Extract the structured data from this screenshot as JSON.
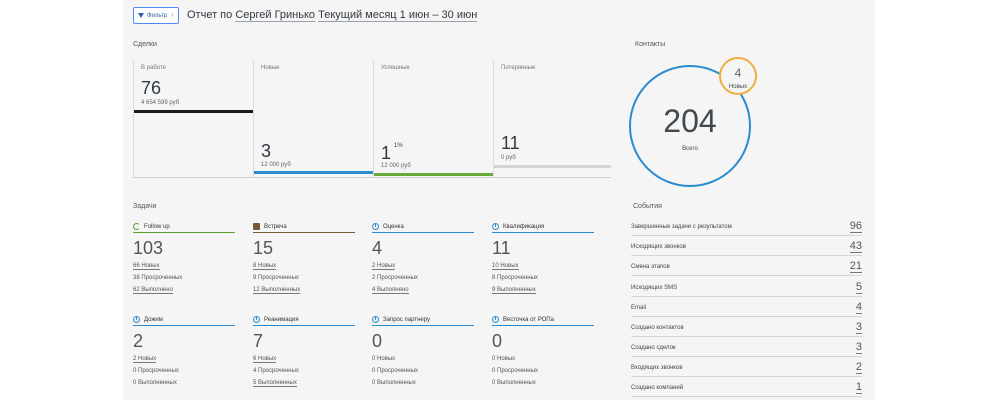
{
  "header": {
    "filter_label": "Фильтр",
    "title_prefix": "Отчет по",
    "user": "Сергей Гринько",
    "period": "Текущий месяц 1 июн – 30 июн"
  },
  "deals": {
    "title": "Сделки",
    "columns": [
      {
        "label": "В работе",
        "value": "76",
        "sup": "",
        "sum": "4 654 599 руб",
        "bar_color": "#1b1b1b"
      },
      {
        "label": "Новые",
        "value": "3",
        "sup": "",
        "sum": "12 000 руб",
        "bar_color": "#2a8bd0"
      },
      {
        "label": "Успешные",
        "value": "1",
        "sup": "1%",
        "sum": "12 000 руб",
        "bar_color": "#6aaa3a"
      },
      {
        "label": "Потерянные",
        "value": "11",
        "sup": "",
        "sum": "0 руб",
        "bar_color": "#d4d4d4"
      }
    ]
  },
  "contacts": {
    "title": "Контакты",
    "total": "204",
    "total_label": "Всего",
    "new": "4",
    "new_label": "Новых"
  },
  "tasks": {
    "title": "Задачи",
    "items": [
      {
        "name": "Follow up",
        "icon": "followup-icon",
        "count": "103",
        "new": "66 Новых",
        "overdue": "38 Просроченных",
        "done": "62 Выполнено"
      },
      {
        "name": "Встреча",
        "icon": "briefcase-icon",
        "count": "15",
        "new": "8 Новых",
        "overdue": "9 Просроченных",
        "done": "12 Выполненных"
      },
      {
        "name": "Оценка",
        "icon": "clock-icon",
        "count": "4",
        "new": "2 Новых",
        "overdue": "2 Просроченных",
        "done": "4 Выполнено"
      },
      {
        "name": "Квалификация",
        "icon": "clock-icon",
        "count": "11",
        "new": "10 Новых",
        "overdue": "8 Просроченных",
        "done": "9 Выполненных"
      },
      {
        "name": "Дожим",
        "icon": "clock-icon",
        "count": "2",
        "new": "2 Новых",
        "overdue": "0 Просроченных",
        "done": "0 Выполненных"
      },
      {
        "name": "Реанимация",
        "icon": "clock-icon",
        "count": "7",
        "new": "6 Новых",
        "overdue": "4 Просроченных",
        "done": "5 Выполненных"
      },
      {
        "name": "Запрос партнеру",
        "icon": "clock-icon",
        "count": "0",
        "new": "0 Новых",
        "overdue": "0 Просроченных",
        "done": "0 Выполненных"
      },
      {
        "name": "Весточка от РОПа",
        "icon": "clock-icon",
        "count": "0",
        "new": "0 Новых",
        "overdue": "0 Просроченных",
        "done": "0 Выполненных"
      }
    ]
  },
  "events": {
    "title": "События",
    "rows": [
      {
        "label": "Завершенные задачи с результатом",
        "value": "96"
      },
      {
        "label": "Исходящих звонков",
        "value": "43"
      },
      {
        "label": "Смена этапов",
        "value": "21"
      },
      {
        "label": "Исходящих SMS",
        "value": "5"
      },
      {
        "label": "Email",
        "value": "4"
      },
      {
        "label": "Создано контактов",
        "value": "3"
      },
      {
        "label": "Создано сделок",
        "value": "3"
      },
      {
        "label": "Входящих звонков",
        "value": "2"
      },
      {
        "label": "Создано компаний",
        "value": "1"
      }
    ]
  }
}
